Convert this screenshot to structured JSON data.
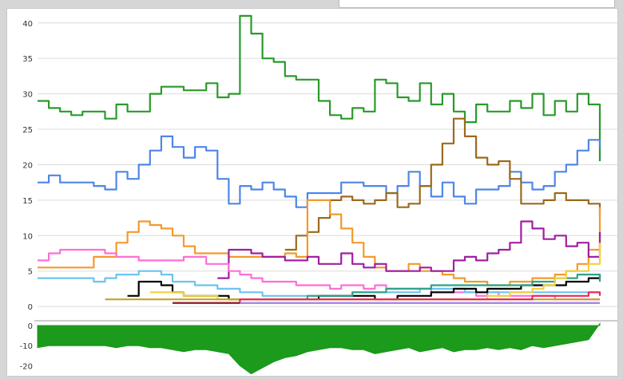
{
  "input_field": {
    "value": ""
  },
  "chart_data": [
    {
      "type": "line",
      "title": "",
      "xlabel": "",
      "ylabel": "",
      "ylim": [
        -1,
        42
      ],
      "yticks": [
        0,
        5,
        10,
        15,
        20,
        25,
        30,
        35,
        40
      ],
      "grid": true,
      "legend": "none",
      "x": [
        0,
        2,
        4,
        6,
        8,
        10,
        12,
        14,
        16,
        18,
        20,
        22,
        24,
        26,
        28,
        30,
        32,
        34,
        36,
        38,
        40,
        42,
        44,
        46,
        48,
        50,
        52,
        54,
        56,
        58,
        60,
        62,
        64,
        66,
        68,
        70,
        72,
        74,
        76,
        78,
        80,
        82,
        84,
        86,
        88,
        90,
        92,
        94,
        96,
        98,
        100
      ],
      "series": [
        {
          "color": "#2a9a2a",
          "values": [
            29,
            28,
            27.5,
            27,
            27.5,
            27.5,
            26.5,
            28.5,
            27.5,
            27.5,
            30,
            31,
            31,
            30.5,
            30.5,
            31.5,
            29.5,
            30,
            41,
            38.5,
            35,
            34.5,
            32.5,
            32,
            32,
            29,
            27,
            26.5,
            28,
            27.5,
            32,
            31.5,
            29.5,
            29,
            31.5,
            28.5,
            30,
            27.5,
            26,
            28.5,
            27.5,
            27.5,
            29,
            28,
            30,
            27,
            29,
            27.5,
            30,
            28.5,
            20.5
          ]
        },
        {
          "color": "#4f86e6",
          "values": [
            17.5,
            18.5,
            17.5,
            17.5,
            17.5,
            17,
            16.5,
            19,
            18,
            20,
            22,
            24,
            22.5,
            21,
            22.5,
            22,
            18,
            14.5,
            17,
            16.5,
            17.5,
            16.5,
            15.5,
            14,
            16,
            16,
            16,
            17.5,
            17.5,
            17,
            17,
            16,
            17,
            19,
            17,
            15.5,
            17.5,
            15.5,
            14.5,
            16.5,
            16.5,
            17,
            19,
            17.5,
            16.5,
            17,
            19,
            20,
            22,
            23.5,
            22.5
          ]
        },
        {
          "color": "#9b6a1c",
          "values": [
            0,
            0,
            0,
            0,
            0,
            0,
            0,
            0,
            0,
            0,
            0,
            0,
            0,
            0,
            0,
            0,
            0,
            0,
            0,
            0,
            0,
            0,
            8,
            10,
            10.5,
            12.5,
            15,
            15.5,
            15,
            14.5,
            15,
            16,
            14,
            14.5,
            17,
            20,
            23,
            26.5,
            24,
            21,
            20,
            20.5,
            18,
            14.5,
            14.5,
            15,
            16,
            15,
            15,
            14.5,
            13
          ]
        },
        {
          "color": "#f39a2c",
          "values": [
            5.5,
            5.5,
            5.5,
            5.5,
            5.5,
            7,
            7,
            9,
            10.5,
            12,
            11.5,
            11,
            10,
            8.5,
            7.5,
            7.5,
            7.5,
            7,
            7,
            7,
            7,
            7,
            7.5,
            7,
            15,
            15,
            13,
            11,
            9,
            7,
            5.5,
            5,
            5,
            6,
            5,
            5,
            4.5,
            4,
            3.5,
            3.5,
            3,
            3,
            3.5,
            3.5,
            4,
            4,
            4.5,
            5,
            6,
            8,
            14
          ]
        },
        {
          "color": "#a020a0",
          "values": [
            0,
            0,
            0,
            0,
            0,
            0,
            0,
            0,
            0,
            0,
            0,
            0,
            0,
            0,
            0,
            0,
            4,
            8,
            8,
            7.5,
            7,
            7,
            6.5,
            6.5,
            7,
            6,
            6,
            7.5,
            6,
            5.5,
            6,
            5,
            5,
            5,
            5.5,
            5,
            5,
            6.5,
            7,
            6.5,
            7.5,
            8,
            9,
            12,
            11,
            9.5,
            10,
            8.5,
            9,
            7,
            10.5
          ]
        },
        {
          "color": "#ff6ed6",
          "values": [
            6.5,
            7.5,
            8,
            8,
            8,
            8,
            7.5,
            7,
            7,
            6.5,
            6.5,
            6.5,
            6.5,
            7,
            7,
            6,
            6,
            5,
            4.5,
            4,
            3.5,
            3.5,
            3.5,
            3,
            3,
            3,
            2.5,
            3,
            3,
            2.5,
            3,
            2.5,
            2.5,
            2.5,
            2.5,
            2,
            2,
            2,
            2,
            1.5,
            2,
            1.5,
            1.5,
            1.5,
            1.5,
            1.5,
            1,
            1,
            1,
            1,
            1
          ]
        },
        {
          "color": "#6cc4ee",
          "values": [
            4,
            4,
            4,
            4,
            4,
            3.5,
            4,
            4.5,
            4.5,
            5,
            5,
            4.5,
            3.5,
            3.5,
            3,
            3,
            2.5,
            2.5,
            2,
            2,
            1.5,
            1.5,
            1.5,
            1.5,
            1.5,
            1.5,
            1.5,
            1.5,
            2,
            2,
            2,
            2,
            2,
            2,
            2.5,
            2.5,
            2.5,
            2.5,
            2,
            2,
            2,
            2,
            2,
            2,
            2,
            2,
            2,
            2,
            2,
            2,
            2
          ]
        },
        {
          "color": "#000000",
          "values": [
            0,
            0,
            0,
            0,
            0,
            0,
            0,
            0,
            1.5,
            3.5,
            3.5,
            3,
            2,
            1.5,
            1.5,
            1.5,
            1.5,
            1,
            1,
            1,
            1,
            1,
            1,
            1,
            1,
            1.5,
            1.5,
            1.5,
            1.5,
            1.5,
            1,
            1,
            1.5,
            1.5,
            1.5,
            2,
            2,
            2.5,
            2.5,
            2,
            2.5,
            2.5,
            2.5,
            3,
            3,
            3,
            3,
            3.5,
            3.5,
            4,
            4.5
          ]
        },
        {
          "color": "#2aa389",
          "values": [
            0,
            0,
            0,
            0,
            0,
            0,
            0,
            0,
            0,
            0,
            0,
            0,
            0,
            0,
            0,
            0,
            0,
            0,
            0,
            0,
            1,
            1,
            1,
            1,
            1.5,
            1.5,
            1.5,
            1.5,
            2,
            2,
            2,
            2.5,
            2.5,
            2.5,
            2.5,
            3,
            3,
            3,
            3,
            3,
            3,
            3,
            3,
            3,
            3.5,
            3.5,
            4,
            4,
            4.5,
            4.5,
            3.5
          ]
        },
        {
          "color": "#f0d23c",
          "values": [
            0,
            0,
            0,
            0,
            0,
            0,
            0,
            0,
            0,
            0,
            2,
            2,
            2,
            1.5,
            1.5,
            1.5,
            1,
            1,
            1,
            1,
            1,
            1,
            1,
            1,
            1,
            1,
            1,
            1,
            1,
            1,
            1,
            1,
            1,
            1,
            1,
            1,
            1,
            1,
            1,
            1,
            1.5,
            1.5,
            2,
            2,
            2.5,
            3,
            4,
            5,
            5,
            6,
            9
          ]
        },
        {
          "color": "#c7a22a",
          "values": [
            0,
            0,
            0,
            0,
            0,
            0,
            1,
            1,
            1,
            1,
            1,
            1,
            1,
            1,
            1,
            1,
            1,
            1,
            1,
            1,
            1,
            1,
            1,
            1,
            1,
            1,
            1,
            1,
            1,
            1,
            1,
            1,
            1,
            1,
            1,
            1,
            1,
            1,
            1,
            1,
            1,
            1,
            1,
            1,
            1,
            1,
            1,
            1,
            1,
            1,
            1
          ]
        },
        {
          "color": "#e8285c",
          "values": [
            0,
            0,
            0,
            0,
            0,
            0,
            0,
            0,
            0,
            0,
            0,
            0,
            0.5,
            0.5,
            0.5,
            0.5,
            0.5,
            0.5,
            1,
            1,
            1,
            1,
            1,
            1,
            1,
            1,
            1,
            1,
            1,
            1,
            1,
            1,
            1,
            1,
            1,
            1,
            1,
            1,
            1,
            1,
            1,
            1,
            1,
            1,
            1.5,
            1.5,
            1.5,
            1.5,
            1.5,
            2,
            1.5
          ]
        },
        {
          "color": "#8a1a2a",
          "values": [
            0,
            0,
            0,
            0,
            0,
            0,
            0,
            0,
            0,
            0,
            0,
            0,
            0.5,
            0.5,
            0.5,
            0.5,
            0.5,
            0.5,
            0.5,
            0.5,
            0.5,
            0.5,
            0.5,
            0.5,
            0.5,
            0.5,
            0.5,
            0.5,
            0.5,
            0.5,
            0.5,
            0.5,
            0.5,
            0.5,
            0.5,
            0.5,
            0.5,
            0.5,
            0.5,
            0.5,
            0.5,
            0.5,
            0.5,
            0.5,
            0.5,
            0.5,
            0.5,
            0.5,
            0.5,
            0.5,
            0.5
          ]
        },
        {
          "color": "#a88af0",
          "values": [
            0,
            0,
            0,
            0,
            0,
            0,
            0,
            0,
            0,
            0,
            0,
            0,
            0,
            0,
            0,
            0,
            0,
            0,
            0.5,
            0.5,
            0.5,
            0.5,
            0.5,
            0.5,
            0.5,
            0.5,
            0.5,
            0.5,
            0.5,
            0.5,
            0.5,
            0.5,
            0.5,
            0.5,
            0.5,
            0.5,
            0.5,
            0.5,
            0.5,
            0.5,
            0.5,
            0.5,
            0.5,
            0.5,
            0.5,
            0.5,
            0.5,
            0.5,
            0.5,
            0.5,
            0.5
          ]
        }
      ]
    },
    {
      "type": "area",
      "title": "",
      "ylim": [
        -25,
        2
      ],
      "yticks": [
        0,
        -10,
        -20
      ],
      "grid": false,
      "legend": "none",
      "color": "#1b9a1b",
      "x": [
        0,
        2,
        4,
        6,
        8,
        10,
        12,
        14,
        16,
        18,
        20,
        22,
        24,
        26,
        28,
        30,
        32,
        34,
        36,
        38,
        40,
        42,
        44,
        46,
        48,
        50,
        52,
        54,
        56,
        58,
        60,
        62,
        64,
        66,
        68,
        70,
        72,
        74,
        76,
        78,
        80,
        82,
        84,
        86,
        88,
        90,
        92,
        94,
        96,
        98,
        100
      ],
      "values": [
        -11,
        -10,
        -10,
        -10,
        -10,
        -10,
        -10,
        -11,
        -10,
        -10,
        -11,
        -11,
        -12,
        -13,
        -12,
        -12,
        -13,
        -14,
        -20,
        -24,
        -21,
        -18,
        -16,
        -15,
        -13,
        -12,
        -11,
        -11,
        -12,
        -12,
        -14,
        -13,
        -12,
        -11,
        -13,
        -12,
        -11,
        -13,
        -12,
        -12,
        -11,
        -12,
        -11,
        -12,
        -10,
        -11,
        -10,
        -9,
        -8,
        -7,
        1
      ]
    }
  ]
}
